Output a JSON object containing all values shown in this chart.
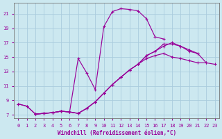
{
  "xlabel": "Windchill (Refroidissement éolien,°C)",
  "background_color": "#cce8f0",
  "grid_color": "#aaccdd",
  "line_color": "#990099",
  "xlim": [
    -0.5,
    23.5
  ],
  "ylim": [
    6.5,
    22.5
  ],
  "xticks": [
    0,
    1,
    2,
    3,
    4,
    5,
    6,
    7,
    8,
    9,
    10,
    11,
    12,
    13,
    14,
    15,
    16,
    17,
    18,
    19,
    20,
    21,
    22,
    23
  ],
  "yticks": [
    7,
    9,
    11,
    13,
    15,
    17,
    19,
    21
  ],
  "curve1_x": [
    0,
    1,
    2,
    3,
    4,
    5,
    6,
    7,
    8,
    9,
    10,
    11,
    12,
    13,
    14,
    15,
    16,
    17
  ],
  "curve1_y": [
    8.5,
    8.2,
    7.1,
    7.2,
    7.3,
    7.5,
    7.4,
    14.8,
    12.8,
    10.5,
    19.2,
    21.3,
    21.7,
    21.6,
    21.4,
    20.3,
    17.8,
    17.5
  ],
  "curve2_x": [
    0,
    1,
    2,
    3,
    4,
    5,
    6,
    7,
    8,
    9,
    10,
    11,
    12,
    13,
    14,
    15,
    16,
    17,
    18,
    19,
    20,
    21
  ],
  "curve2_y": [
    8.5,
    8.2,
    7.1,
    7.2,
    7.3,
    7.5,
    7.4,
    7.2,
    7.9,
    8.8,
    10.0,
    11.2,
    12.2,
    13.2,
    14.0,
    15.2,
    15.8,
    16.5,
    17.0,
    16.5,
    15.8,
    15.5
  ],
  "curve3_x": [
    2,
    3,
    4,
    5,
    6,
    7,
    8,
    9,
    10,
    11,
    12,
    13,
    14,
    15,
    16,
    17,
    18,
    19,
    20,
    21,
    22
  ],
  "curve3_y": [
    7.1,
    7.2,
    7.3,
    7.5,
    7.4,
    7.2,
    7.9,
    8.8,
    10.0,
    11.2,
    12.2,
    13.2,
    14.0,
    15.2,
    15.8,
    16.8,
    16.8,
    16.5,
    16.0,
    15.5,
    14.2
  ],
  "curve4_x": [
    2,
    3,
    4,
    5,
    6,
    7,
    8,
    9,
    10,
    11,
    12,
    13,
    14,
    15,
    16,
    17,
    18,
    19,
    20,
    21,
    22,
    23
  ],
  "curve4_y": [
    7.1,
    7.2,
    7.3,
    7.5,
    7.4,
    7.2,
    7.9,
    8.8,
    10.0,
    11.2,
    12.2,
    13.2,
    14.0,
    14.8,
    15.2,
    15.5,
    15.0,
    14.8,
    14.5,
    14.2,
    14.2,
    14.0
  ]
}
